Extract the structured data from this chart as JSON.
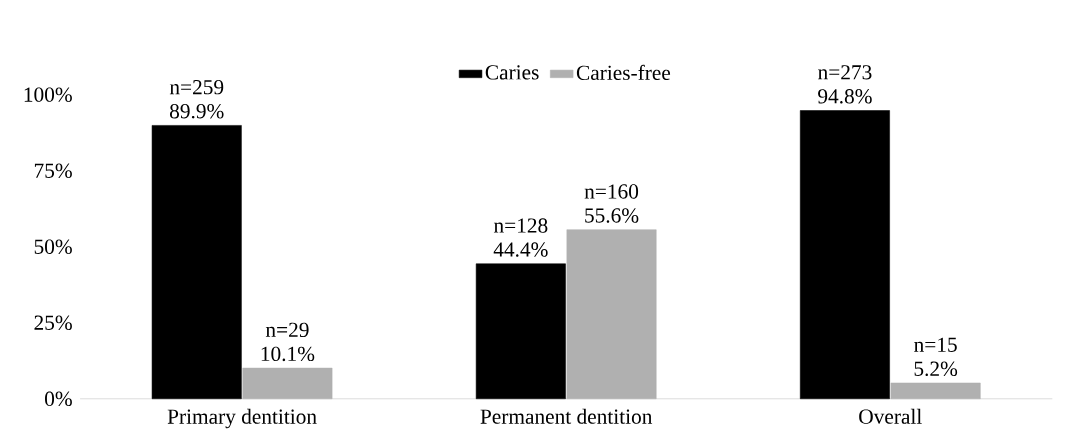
{
  "chart_data": {
    "type": "bar",
    "categories": [
      "Primary dentition",
      "Permanent dentition",
      "Overall"
    ],
    "series": [
      {
        "name": "Caries",
        "color": "#000000",
        "values": [
          89.9,
          44.4,
          94.8
        ],
        "value_labels": [
          "n=259 89.9%",
          "n=128 44.4%",
          "n=273 94.8%"
        ]
      },
      {
        "name": "Caries-free",
        "color": "#b0b0b0",
        "values": [
          10.1,
          55.6,
          5.2
        ],
        "value_labels": [
          "n=29 10.1%",
          "n=160 55.6%",
          "n=15 5.2%"
        ]
      }
    ],
    "ylim": [
      0,
      100
    ],
    "yticks": [
      {
        "value": 0,
        "label": "0%"
      },
      {
        "value": 25,
        "label": "25%"
      },
      {
        "value": 50,
        "label": "50%"
      },
      {
        "value": 75,
        "label": "75%"
      },
      {
        "value": 100,
        "label": "100%"
      }
    ],
    "grid": false,
    "legend": "top"
  }
}
